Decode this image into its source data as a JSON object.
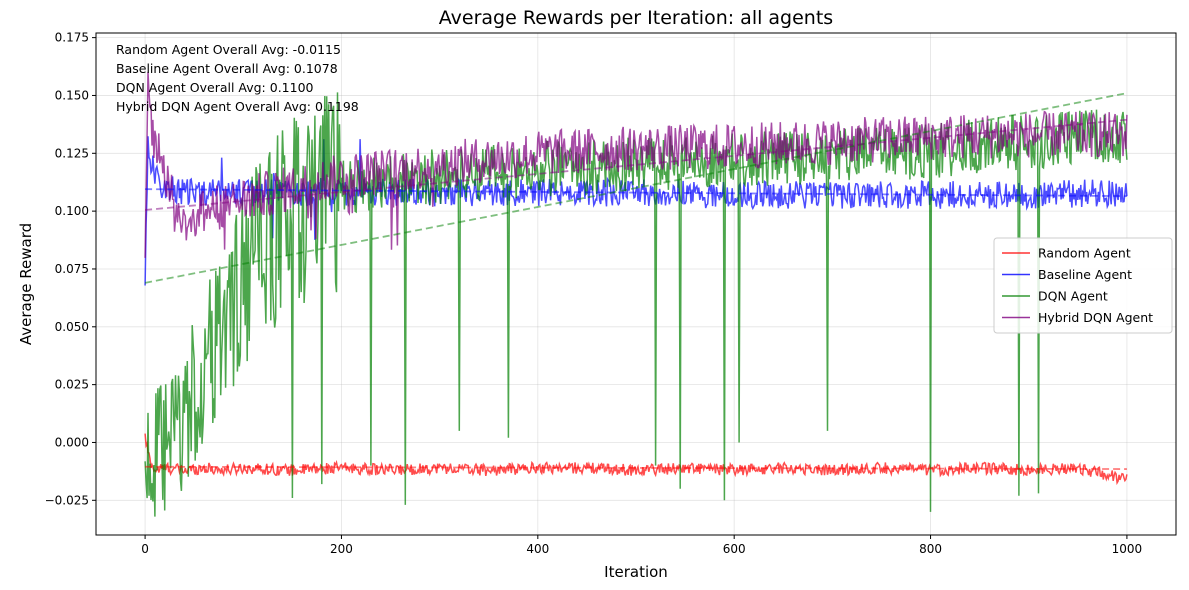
{
  "chart_data": {
    "type": "line",
    "title": "Average Rewards per Iteration: all agents",
    "xlabel": "Iteration",
    "ylabel": "Average Reward",
    "xlim": [
      -50,
      1050
    ],
    "ylim": [
      -0.04,
      0.177
    ],
    "xticks": [
      0,
      200,
      400,
      600,
      800,
      1000
    ],
    "xtick_labels": [
      "0",
      "200",
      "400",
      "600",
      "800",
      "1000"
    ],
    "yticks": [
      -0.025,
      0,
      0.025,
      0.05,
      0.075,
      0.1,
      0.125,
      0.15,
      0.175
    ],
    "ytick_labels": [
      "−0.025",
      "0.000",
      "0.025",
      "0.050",
      "0.075",
      "0.100",
      "0.125",
      "0.150",
      "0.175"
    ],
    "grid": true,
    "legend_position": "center-right",
    "annotations": [
      "Random Agent Overall Avg: -0.0115",
      "Baseline Agent Overall Avg: 0.1078",
      "DQN Agent Overall Avg: 0.1100",
      "Hybrid DQN Agent Overall Avg: 0.1198"
    ],
    "series": [
      {
        "name": "Random Agent",
        "color": "#ff0000",
        "x": [
          0,
          5,
          10,
          20,
          40,
          60,
          80,
          100,
          150,
          200,
          250,
          300,
          350,
          400,
          450,
          500,
          550,
          600,
          650,
          700,
          750,
          800,
          850,
          900,
          950,
          1000
        ],
        "values": [
          0.002,
          -0.008,
          -0.012,
          -0.011,
          -0.012,
          -0.011,
          -0.012,
          -0.011,
          -0.012,
          -0.011,
          -0.012,
          -0.011,
          -0.012,
          -0.011,
          -0.011,
          -0.012,
          -0.011,
          -0.012,
          -0.011,
          -0.012,
          -0.011,
          -0.012,
          -0.011,
          -0.012,
          -0.011,
          -0.016
        ],
        "noise": 0.0025,
        "trend": [
          -0.0105,
          -0.0115
        ]
      },
      {
        "name": "Baseline Agent",
        "color": "#0000ff",
        "x": [
          0,
          3,
          6,
          10,
          20,
          40,
          60,
          80,
          100,
          150,
          200,
          300,
          400,
          500,
          600,
          700,
          800,
          900,
          1000
        ],
        "values": [
          0.072,
          0.13,
          0.122,
          0.115,
          0.11,
          0.108,
          0.108,
          0.109,
          0.108,
          0.108,
          0.108,
          0.108,
          0.108,
          0.108,
          0.107,
          0.107,
          0.107,
          0.107,
          0.108
        ],
        "noise": 0.006,
        "trend": [
          0.1095,
          0.1065
        ]
      },
      {
        "name": "DQN Agent",
        "color": "#008000",
        "x": [
          0,
          10,
          20,
          40,
          60,
          80,
          100,
          120,
          150,
          200,
          250,
          300,
          400,
          500,
          600,
          700,
          800,
          900,
          1000
        ],
        "values": [
          -0.005,
          -0.008,
          -0.005,
          0.01,
          0.03,
          0.05,
          0.07,
          0.085,
          0.1,
          0.11,
          0.113,
          0.115,
          0.118,
          0.12,
          0.122,
          0.124,
          0.126,
          0.13,
          0.133
        ],
        "noise": 0.012,
        "trend": [
          0.069,
          0.151
        ],
        "dips": [
          [
            150,
            -0.024
          ],
          [
            180,
            -0.018
          ],
          [
            230,
            -0.01
          ],
          [
            265,
            -0.027
          ],
          [
            320,
            0.005
          ],
          [
            370,
            0.002
          ],
          [
            520,
            -0.01
          ],
          [
            545,
            -0.02
          ],
          [
            590,
            -0.025
          ],
          [
            605,
            0.0
          ],
          [
            695,
            0.005
          ],
          [
            800,
            -0.03
          ],
          [
            890,
            -0.023
          ],
          [
            910,
            -0.022
          ]
        ]
      },
      {
        "name": "Hybrid DQN Agent",
        "color": "#800080",
        "x": [
          0,
          3,
          6,
          10,
          20,
          30,
          40,
          60,
          80,
          100,
          150,
          200,
          300,
          400,
          500,
          600,
          700,
          800,
          900,
          1000
        ],
        "values": [
          0.075,
          0.155,
          0.14,
          0.13,
          0.12,
          0.1,
          0.095,
          0.1,
          0.102,
          0.105,
          0.11,
          0.115,
          0.12,
          0.125,
          0.127,
          0.128,
          0.13,
          0.132,
          0.133,
          0.133
        ],
        "noise": 0.01,
        "trend": [
          0.1005,
          0.1395
        ]
      }
    ]
  }
}
